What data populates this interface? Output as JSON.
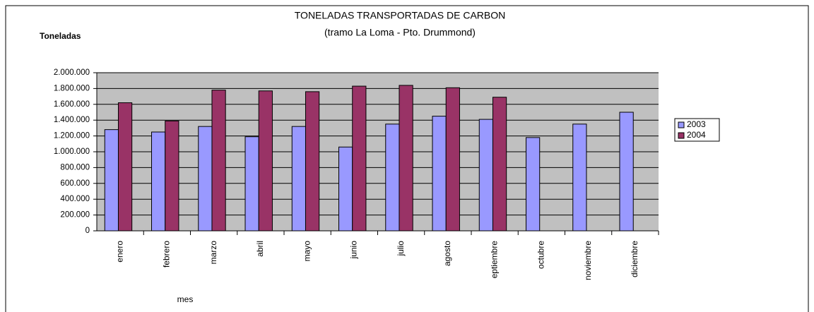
{
  "chart_data": {
    "type": "bar",
    "title": "TONELADAS TRANSPORTADAS DE CARBON",
    "subtitle": "(tramo La Loma - Pto. Drummond)",
    "y_label": "Toneladas",
    "x_label": "mes",
    "categories": [
      "enero",
      "febrero",
      "marzo",
      "abril",
      "mayo",
      "junio",
      "julio",
      "agosto",
      "eptiembre",
      "octubre",
      "noviembre",
      "diciembre"
    ],
    "series": [
      {
        "name": "2003",
        "color": "#9999ff",
        "values": [
          1280000,
          1250000,
          1320000,
          1190000,
          1320000,
          1060000,
          1350000,
          1450000,
          1410000,
          1180000,
          1350000,
          1500000
        ]
      },
      {
        "name": "2004",
        "color": "#993366",
        "values": [
          1620000,
          1390000,
          1780000,
          1770000,
          1760000,
          1830000,
          1840000,
          1810000,
          1690000,
          null,
          null,
          null
        ]
      }
    ],
    "ylim": [
      0,
      2000000
    ],
    "yticks": [
      0,
      {
        "value": 200000,
        "label": "200.000"
      },
      {
        "value": 400000,
        "label": "400.000"
      },
      {
        "value": 600000,
        "label": "600.000"
      },
      {
        "value": 800000,
        "label": "800.000"
      },
      {
        "value": 1000000,
        "label": "1.000.000"
      },
      {
        "value": 1200000,
        "label": "1.200.000"
      },
      {
        "value": 1400000,
        "label": "1.400.000"
      },
      {
        "value": 1600000,
        "label": "1.600.000"
      },
      {
        "value": 1800000,
        "label": "1.800.000"
      },
      {
        "value": 2000000,
        "label": "2.000.000"
      }
    ],
    "grid": true,
    "legend": "right"
  }
}
